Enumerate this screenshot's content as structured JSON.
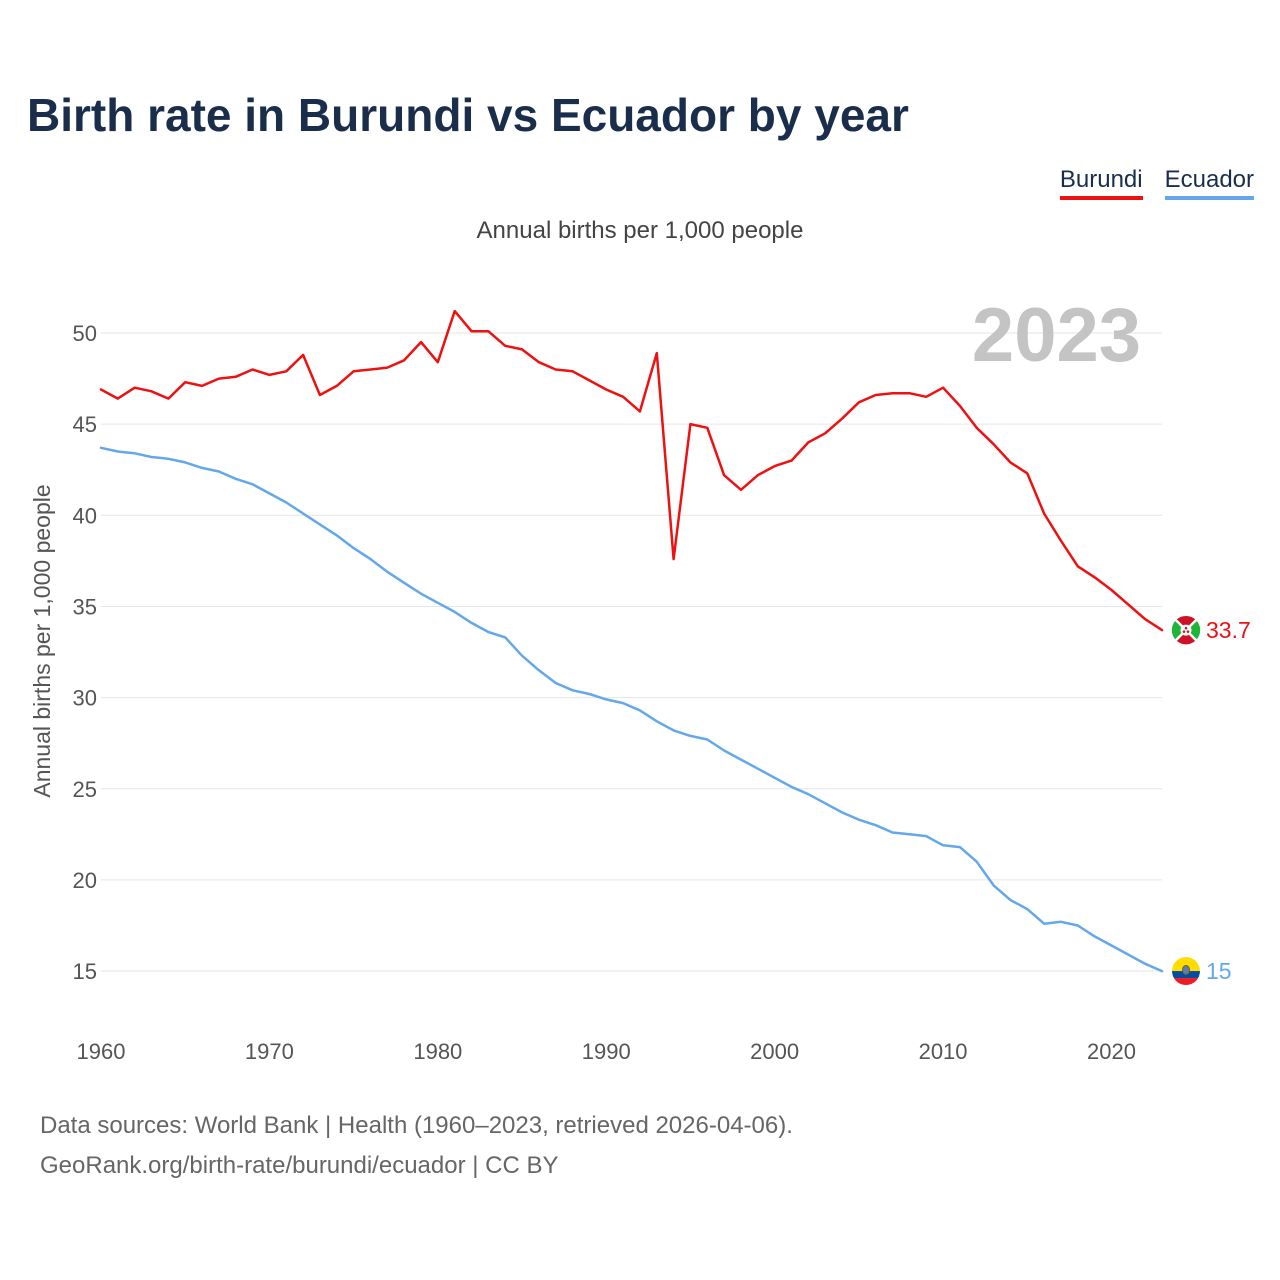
{
  "title": "Birth rate in Burundi vs Ecuador by year",
  "subtitle": "Annual births per 1,000 people",
  "big_year": "2023",
  "source_line1": "Data sources: World Bank | Health (1960–2023, retrieved 2026-04-06).",
  "source_line2": "GeoRank.org/birth-rate/burundi/ecuador | CC BY",
  "colors": {
    "burundi": "#ee1111",
    "ecuador": "#64a8ea",
    "grid": "#e6e6e6",
    "title": "#1a2e4c"
  },
  "icons": {
    "burundi": "burundi-flag-icon",
    "ecuador": "ecuador-flag-icon"
  },
  "chart_data": {
    "type": "line",
    "ylabel": "Annual births per 1,000 people",
    "xlabel": "",
    "xlim": [
      1960,
      2023
    ],
    "ylim": [
      12.5,
      53
    ],
    "xticks": [
      1960,
      1970,
      1980,
      1990,
      2000,
      2010,
      2020
    ],
    "yticks": [
      15,
      20,
      25,
      30,
      35,
      40,
      45,
      50
    ],
    "grid": true,
    "legend_position": "top-right",
    "x": [
      1960,
      1961,
      1962,
      1963,
      1964,
      1965,
      1966,
      1967,
      1968,
      1969,
      1970,
      1971,
      1972,
      1973,
      1974,
      1975,
      1976,
      1977,
      1978,
      1979,
      1980,
      1981,
      1982,
      1983,
      1984,
      1985,
      1986,
      1987,
      1988,
      1989,
      1990,
      1991,
      1992,
      1993,
      1994,
      1995,
      1996,
      1997,
      1998,
      1999,
      2000,
      2001,
      2002,
      2003,
      2004,
      2005,
      2006,
      2007,
      2008,
      2009,
      2010,
      2011,
      2012,
      2013,
      2014,
      2015,
      2016,
      2017,
      2018,
      2019,
      2020,
      2021,
      2022,
      2023
    ],
    "series": [
      {
        "name": "Burundi",
        "end_label": "33.7",
        "values": [
          46.9,
          46.4,
          47.0,
          46.8,
          46.4,
          47.3,
          47.1,
          47.5,
          47.6,
          48.0,
          47.7,
          47.9,
          48.8,
          46.6,
          47.1,
          47.9,
          48.0,
          48.1,
          48.5,
          49.5,
          48.4,
          51.2,
          50.1,
          50.1,
          49.3,
          49.1,
          48.4,
          48.0,
          47.9,
          47.4,
          46.9,
          46.5,
          45.7,
          48.9,
          37.6,
          45.0,
          44.8,
          42.2,
          41.4,
          42.2,
          42.7,
          43.0,
          44.0,
          44.5,
          45.3,
          46.2,
          46.6,
          46.7,
          46.7,
          46.5,
          47.0,
          46.0,
          44.8,
          43.9,
          42.9,
          42.3,
          40.1,
          38.6,
          37.2,
          36.6,
          35.9,
          35.1,
          34.3,
          33.7
        ]
      },
      {
        "name": "Ecuador",
        "end_label": "15",
        "values": [
          43.7,
          43.5,
          43.4,
          43.2,
          43.1,
          42.9,
          42.6,
          42.4,
          42.0,
          41.7,
          41.2,
          40.7,
          40.1,
          39.5,
          38.9,
          38.2,
          37.6,
          36.9,
          36.3,
          35.7,
          35.2,
          34.7,
          34.1,
          33.6,
          33.3,
          32.3,
          31.5,
          30.8,
          30.4,
          30.2,
          29.9,
          29.7,
          29.3,
          28.7,
          28.2,
          27.9,
          27.7,
          27.1,
          26.6,
          26.1,
          25.6,
          25.1,
          24.7,
          24.2,
          23.7,
          23.3,
          23.0,
          22.6,
          22.5,
          22.4,
          21.9,
          21.8,
          21.0,
          19.7,
          18.9,
          18.4,
          17.6,
          17.7,
          17.5,
          16.9,
          16.4,
          15.9,
          15.4,
          15.0
        ]
      }
    ]
  }
}
